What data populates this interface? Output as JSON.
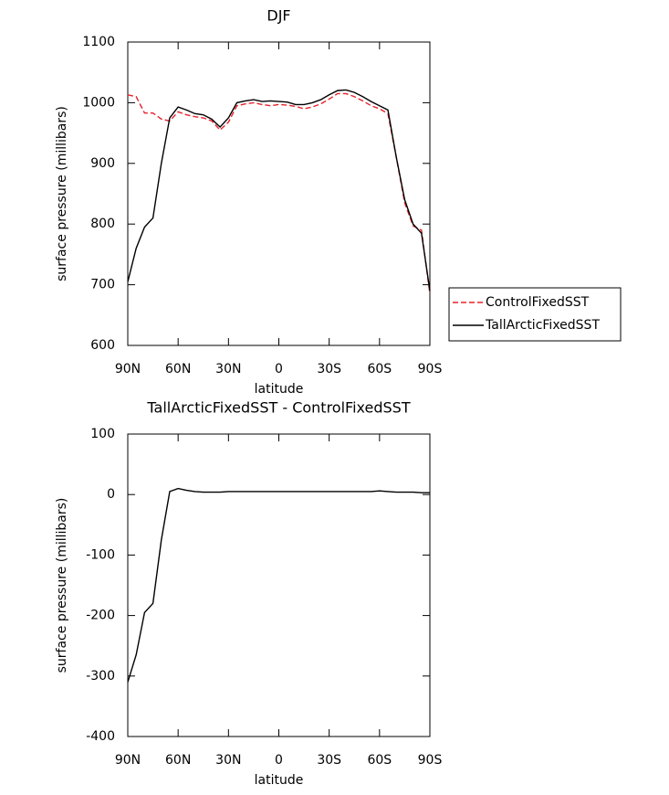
{
  "chart_data": [
    {
      "type": "line",
      "title": "DJF",
      "xlabel": "latitude",
      "ylabel": "surface pressure (millibars)",
      "x": [
        90,
        85,
        80,
        75,
        70,
        65,
        60,
        55,
        50,
        45,
        40,
        35,
        30,
        25,
        20,
        15,
        10,
        5,
        0,
        -5,
        -10,
        -15,
        -20,
        -25,
        -30,
        -35,
        -40,
        -45,
        -50,
        -55,
        -60,
        -65,
        -70,
        -75,
        -80,
        -85,
        -90
      ],
      "xlim": [
        90,
        -90
      ],
      "xticks": [
        {
          "value": 90,
          "label": "90N"
        },
        {
          "value": 60,
          "label": "60N"
        },
        {
          "value": 30,
          "label": "30N"
        },
        0,
        {
          "value": -30,
          "label": "30S"
        },
        {
          "value": -60,
          "label": "60S"
        },
        {
          "value": -90,
          "label": "90S"
        }
      ],
      "ylim": [
        600,
        1100
      ],
      "yticks": [
        600,
        700,
        800,
        900,
        1000,
        1100
      ],
      "legend": "right",
      "series": [
        {
          "name": "ControlFixedSST",
          "color": "#e8202a",
          "linestyle": "dashed",
          "values": [
            1013,
            1010,
            983,
            983,
            973,
            970,
            985,
            980,
            977,
            975,
            970,
            955,
            968,
            995,
            998,
            1000,
            997,
            995,
            997,
            996,
            994,
            990,
            993,
            998,
            1006,
            1015,
            1015,
            1010,
            1003,
            995,
            990,
            982,
            910,
            835,
            797,
            790,
            685
          ]
        },
        {
          "name": "TallArcticFixedSST",
          "color": "#000000",
          "linestyle": "solid",
          "values": [
            705,
            760,
            795,
            810,
            900,
            975,
            993,
            988,
            982,
            980,
            973,
            960,
            975,
            1000,
            1003,
            1005,
            1002,
            1003,
            1002,
            1001,
            997,
            997,
            1000,
            1005,
            1013,
            1020,
            1021,
            1017,
            1010,
            1002,
            995,
            988,
            910,
            840,
            800,
            785,
            690
          ]
        }
      ]
    },
    {
      "type": "line",
      "title": "TallArcticFixedSST - ControlFixedSST",
      "xlabel": "latitude",
      "ylabel": "surface pressure (millibars)",
      "x": [
        90,
        85,
        80,
        75,
        70,
        65,
        60,
        55,
        50,
        45,
        40,
        35,
        30,
        25,
        20,
        15,
        10,
        5,
        0,
        -5,
        -10,
        -15,
        -20,
        -25,
        -30,
        -35,
        -40,
        -45,
        -50,
        -55,
        -60,
        -65,
        -70,
        -75,
        -80,
        -85,
        -90
      ],
      "xlim": [
        90,
        -90
      ],
      "xticks": [
        {
          "value": 90,
          "label": "90N"
        },
        {
          "value": 60,
          "label": "60N"
        },
        {
          "value": 30,
          "label": "30N"
        },
        0,
        {
          "value": -30,
          "label": "30S"
        },
        {
          "value": -60,
          "label": "60S"
        },
        {
          "value": -90,
          "label": "90S"
        }
      ],
      "ylim": [
        -400,
        100
      ],
      "yticks": [
        -400,
        -300,
        -200,
        -100,
        0,
        100
      ],
      "series": [
        {
          "color": "#000000",
          "linestyle": "solid",
          "values": [
            -310,
            -265,
            -195,
            -180,
            -75,
            5,
            10,
            7,
            5,
            4,
            4,
            4,
            5,
            5,
            5,
            5,
            5,
            5,
            5,
            5,
            5,
            5,
            5,
            5,
            5,
            5,
            5,
            5,
            5,
            5,
            6,
            5,
            4,
            4,
            4,
            3,
            3
          ]
        }
      ]
    }
  ]
}
